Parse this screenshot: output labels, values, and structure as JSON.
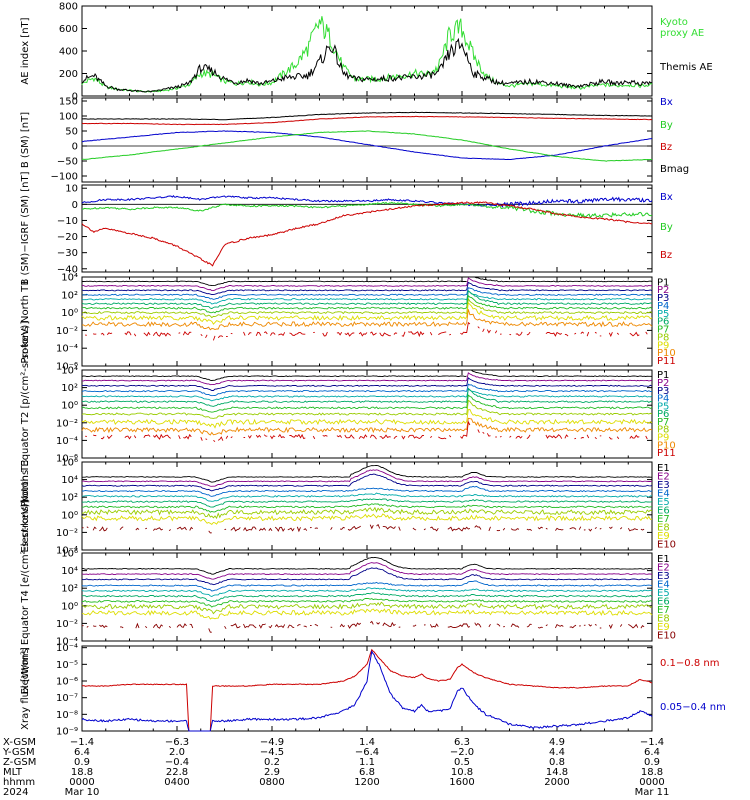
{
  "colors": {
    "black": "#000000",
    "green": "#22cc22",
    "blue": "#0000cc",
    "red": "#cc0000",
    "kyoto": "#33dd33",
    "P": [
      "#000000",
      "#880088",
      "#000088",
      "#0066cc",
      "#00aaaa",
      "#00aa66",
      "#22bb22",
      "#99cc00",
      "#dddd00",
      "#ee8800",
      "#cc0000",
      "#880000"
    ]
  },
  "chart_data": [
    {
      "type": "line",
      "title": "",
      "ylabel": "AE index [nT]",
      "yscale": "linear",
      "ylim": [
        0,
        800
      ],
      "yticks": [
        "0",
        "200",
        "400",
        "600",
        "800"
      ],
      "xlim": [
        0,
        24
      ],
      "series": [
        {
          "name": "Themis AE",
          "color": "#000000",
          "x": [
            0,
            0.5,
            1,
            1.5,
            2,
            2.5,
            3,
            3.5,
            4,
            4.5,
            5,
            5.5,
            6,
            6.5,
            7,
            7.5,
            8,
            8.5,
            9,
            9.5,
            10,
            10.5,
            11,
            11.5,
            12,
            12.5,
            13,
            13.5,
            14,
            14.5,
            15,
            15.5,
            16,
            16.5,
            17,
            17.5,
            18,
            18.5,
            19,
            19.5,
            20,
            20.5,
            21,
            21.5,
            22,
            22.5,
            23,
            23.5,
            24
          ],
          "y": [
            140,
            180,
            90,
            60,
            50,
            40,
            40,
            60,
            80,
            110,
            250,
            220,
            150,
            120,
            140,
            110,
            130,
            160,
            170,
            180,
            300,
            460,
            200,
            150,
            150,
            150,
            160,
            160,
            170,
            180,
            200,
            390,
            460,
            200,
            160,
            120,
            110,
            120,
            130,
            120,
            110,
            90,
            90,
            110,
            130,
            110,
            130,
            110,
            120
          ]
        },
        {
          "name": "Kyoto proxy AE",
          "color": "#33dd33",
          "x": [
            0,
            0.5,
            1,
            1.5,
            2,
            2.5,
            3,
            3.5,
            4,
            4.5,
            5,
            5.5,
            6,
            6.5,
            7,
            7.5,
            8,
            8.5,
            9,
            9.5,
            10,
            10.5,
            11,
            11.5,
            12,
            12.5,
            13,
            13.5,
            14,
            14.5,
            15,
            15.5,
            16,
            16.5,
            17,
            17.5,
            18,
            18.5,
            19,
            19.5,
            20,
            20.5,
            21,
            21.5,
            22,
            22.5,
            23,
            23.5,
            24
          ],
          "y": [
            110,
            160,
            80,
            60,
            50,
            40,
            40,
            50,
            70,
            100,
            200,
            190,
            130,
            110,
            130,
            100,
            120,
            200,
            280,
            420,
            650,
            500,
            250,
            150,
            150,
            150,
            170,
            180,
            200,
            190,
            250,
            560,
            600,
            350,
            180,
            110,
            90,
            100,
            110,
            100,
            90,
            80,
            70,
            90,
            100,
            90,
            100,
            90,
            100
          ]
        }
      ]
    },
    {
      "type": "line",
      "title": "",
      "ylabel": "B (SM) [nT]",
      "yscale": "linear",
      "ylim": [
        -120,
        160
      ],
      "yticks": [
        "−100",
        "−50",
        "0",
        "50",
        "100",
        "150"
      ],
      "xlim": [
        0,
        24
      ],
      "series": [
        {
          "name": "Bx",
          "color": "#0000cc",
          "x": [
            0,
            2,
            4,
            6,
            8,
            10,
            12,
            14,
            16,
            18,
            20,
            22,
            24
          ],
          "y": [
            15,
            30,
            45,
            50,
            45,
            30,
            5,
            -20,
            -40,
            -45,
            -30,
            0,
            25
          ]
        },
        {
          "name": "By",
          "color": "#22cc22",
          "x": [
            0,
            2,
            4,
            6,
            8,
            10,
            12,
            14,
            16,
            18,
            20,
            22,
            24
          ],
          "y": [
            -45,
            -30,
            -10,
            10,
            30,
            45,
            50,
            40,
            20,
            -10,
            -35,
            -50,
            -45
          ]
        },
        {
          "name": "Bz",
          "color": "#cc0000",
          "x": [
            0,
            2,
            4,
            6,
            8,
            10,
            12,
            14,
            16,
            18,
            20,
            22,
            24
          ],
          "y": [
            75,
            75,
            72,
            72,
            78,
            90,
            97,
            98,
            97,
            95,
            92,
            90,
            88
          ]
        },
        {
          "name": "Bmag",
          "color": "#000000",
          "x": [
            0,
            2,
            4,
            6,
            8,
            10,
            12,
            14,
            16,
            18,
            20,
            22,
            24
          ],
          "y": [
            90,
            90,
            90,
            88,
            95,
            105,
            110,
            112,
            110,
            108,
            105,
            102,
            100
          ]
        }
      ]
    },
    {
      "type": "line",
      "title": "",
      "ylabel": "B (SM)−IGRF (SM) [nT]",
      "yscale": "linear",
      "ylim": [
        -42,
        12
      ],
      "yticks": [
        "−40",
        "−30",
        "−20",
        "−10",
        "0",
        "10"
      ],
      "xlim": [
        0,
        24
      ],
      "series": [
        {
          "name": "Bx",
          "color": "#0000cc",
          "x": [
            0,
            1,
            2,
            3,
            4,
            5,
            6,
            7,
            8,
            9,
            10,
            11,
            12,
            13,
            14,
            15,
            16,
            17,
            18,
            19,
            20,
            21,
            22,
            23,
            24
          ],
          "y": [
            1,
            3,
            3,
            4,
            5,
            3,
            5,
            4,
            4,
            3,
            2,
            2,
            2,
            3,
            2,
            1,
            0,
            -1,
            0,
            1,
            2,
            2,
            3,
            3,
            2
          ]
        },
        {
          "name": "By",
          "color": "#22cc22",
          "x": [
            0,
            1,
            2,
            3,
            4,
            5,
            6,
            7,
            8,
            9,
            10,
            11,
            12,
            13,
            14,
            15,
            16,
            17,
            18,
            19,
            20,
            21,
            22,
            23,
            24
          ],
          "y": [
            -3,
            -2,
            -3,
            -2,
            -2,
            -4,
            0,
            -1,
            -1,
            -1,
            -2,
            -1,
            0,
            1,
            0,
            -1,
            0,
            -1,
            -2,
            -4,
            -6,
            -7,
            -7,
            -6,
            -6
          ]
        },
        {
          "name": "Bz",
          "color": "#cc0000",
          "x": [
            0,
            0.5,
            1,
            2,
            3,
            4,
            5,
            5.5,
            6,
            7,
            8,
            9,
            10,
            11,
            12,
            13,
            14,
            15,
            16,
            17,
            18,
            19,
            20,
            21,
            22,
            23,
            24
          ],
          "y": [
            -12,
            -17,
            -15,
            -18,
            -21,
            -26,
            -34,
            -38,
            -25,
            -21,
            -19,
            -15,
            -12,
            -7,
            -5,
            -3,
            -1,
            0,
            1,
            1,
            -1,
            -3,
            -6,
            -8,
            -9,
            -11,
            -12
          ]
        }
      ]
    },
    {
      "type": "line",
      "title": "",
      "ylabel": "Protons North T1",
      "yscale": "log",
      "ylim": [
        -6,
        4
      ],
      "yticks": [
        "10⁴",
        "10²",
        "10⁰",
        "10⁻²",
        "10⁻⁴",
        "10⁻⁶"
      ],
      "xlim": [
        0,
        24
      ],
      "channels": [
        "P1",
        "P2",
        "P3",
        "P4",
        "P5",
        "P6",
        "P7",
        "P8",
        "P9",
        "P10",
        "P11"
      ],
      "levels": [
        3.5,
        3.0,
        2.5,
        2.0,
        1.5,
        1.0,
        0.5,
        0.0,
        -0.6,
        -1.3,
        -2.4
      ],
      "event_hour": 16.3
    },
    {
      "type": "line",
      "title": "",
      "ylabel": "Protons Equator T2 [p/(cm²-s-sr-keV)]",
      "yscale": "log",
      "ylim": [
        -6,
        4
      ],
      "yticks": [
        "10⁴",
        "10²",
        "10⁰",
        "10⁻²",
        "10⁻⁴",
        "10⁻⁶"
      ],
      "xlim": [
        0,
        24
      ],
      "channels": [
        "P1",
        "P2",
        "P3",
        "P4",
        "P5",
        "P6",
        "P7",
        "P8",
        "P9",
        "P10",
        "P11"
      ],
      "levels": [
        3.3,
        2.8,
        2.2,
        1.6,
        1.0,
        0.4,
        -0.3,
        -1.0,
        -1.9,
        -2.8,
        -3.6
      ],
      "event_hour": 16.3
    },
    {
      "type": "line",
      "title": "",
      "ylabel": "Electrons North T3",
      "yscale": "log",
      "ylim": [
        -4,
        6
      ],
      "yticks": [
        "10⁶",
        "10⁴",
        "10²",
        "10⁰",
        "10⁻²",
        "10⁻⁴"
      ],
      "xlim": [
        0,
        24
      ],
      "channels": [
        "E1",
        "E2",
        "E3",
        "E4",
        "E5",
        "E6",
        "E7",
        "E8",
        "E9",
        "E10"
      ],
      "levels": [
        4.3,
        3.8,
        3.3,
        2.7,
        2.1,
        1.5,
        0.9,
        0.3,
        -0.4,
        -1.6
      ],
      "event_hour": 12.3
    },
    {
      "type": "line",
      "title": "",
      "ylabel": "Electrons Equator T4 [e/(cm²-s-sr-keV)]",
      "yscale": "log",
      "ylim": [
        -4,
        6
      ],
      "yticks": [
        "10⁶",
        "10⁴",
        "10²",
        "10⁰",
        "10⁻²",
        "10⁻⁴"
      ],
      "xlim": [
        0,
        24
      ],
      "channels": [
        "E1",
        "E2",
        "E3",
        "E4",
        "E5",
        "E6",
        "E7",
        "E8",
        "E9",
        "E10"
      ],
      "levels": [
        4.2,
        3.6,
        3.0,
        2.3,
        1.7,
        1.1,
        0.5,
        -0.1,
        -0.8,
        -2.3
      ],
      "event_hour": 12.3
    },
    {
      "type": "line",
      "title": "",
      "ylabel": "Xray flux [W/m²]",
      "yscale": "log",
      "ylim": [
        -9,
        -3.9
      ],
      "yticks": [
        "10⁻⁴",
        "10⁻⁵",
        "10⁻⁶",
        "10⁻⁷",
        "10⁻⁸",
        "10⁻⁹"
      ],
      "xlim": [
        0,
        24
      ],
      "series": [
        {
          "name": "0.1–0.8 nm",
          "color": "#cc0000",
          "x": [
            0,
            1,
            2,
            3,
            4,
            4.4,
            4.5,
            5.4,
            5.5,
            6,
            7,
            8,
            9,
            10,
            10.5,
            11,
            11.5,
            12,
            12.2,
            12.5,
            13,
            13.5,
            14,
            14.3,
            14.5,
            15,
            15.5,
            15.8,
            16,
            16.3,
            16.5,
            17,
            17.5,
            18,
            19,
            20,
            21,
            22,
            23,
            23.5,
            24
          ],
          "y": [
            -6.3,
            -6.3,
            -6.2,
            -6.2,
            -6.2,
            -6.2,
            -9.0,
            -9.0,
            -6.3,
            -6.3,
            -6.3,
            -6.2,
            -6.2,
            -6.2,
            -6.1,
            -6.0,
            -5.7,
            -5.0,
            -4.1,
            -4.6,
            -5.4,
            -5.7,
            -5.8,
            -5.6,
            -5.8,
            -6.0,
            -5.9,
            -5.2,
            -5.0,
            -5.3,
            -5.5,
            -5.8,
            -6.0,
            -6.2,
            -6.3,
            -6.4,
            -6.4,
            -6.3,
            -6.3,
            -5.9,
            -6.1
          ]
        },
        {
          "name": "0.05–0.4 nm",
          "color": "#0000cc",
          "x": [
            0,
            1,
            2,
            3,
            4,
            4.4,
            4.5,
            5.4,
            5.5,
            6,
            7,
            8,
            9,
            10,
            10.5,
            11,
            11.5,
            12,
            12.2,
            12.5,
            13,
            13.5,
            14,
            14.3,
            14.5,
            15,
            15.5,
            15.8,
            16,
            16.3,
            16.5,
            17,
            17.5,
            18,
            19,
            20,
            21,
            22,
            23,
            23.5,
            24
          ],
          "y": [
            -8.3,
            -8.4,
            -8.3,
            -8.4,
            -8.4,
            -8.4,
            -9.0,
            -9.0,
            -8.4,
            -8.4,
            -8.3,
            -8.3,
            -8.3,
            -8.2,
            -8.0,
            -7.8,
            -7.4,
            -6.0,
            -4.2,
            -5.0,
            -6.8,
            -7.6,
            -7.8,
            -7.4,
            -7.8,
            -7.8,
            -7.7,
            -6.6,
            -6.4,
            -7.0,
            -7.4,
            -8.0,
            -8.3,
            -8.6,
            -8.8,
            -8.7,
            -8.6,
            -8.4,
            -8.2,
            -7.8,
            -8.1
          ]
        }
      ]
    }
  ],
  "labels": {
    "ae": [
      "Kyoto",
      "proxy AE",
      "Themis AE"
    ],
    "b": [
      "Bx",
      "By",
      "Bz",
      "Bmag"
    ],
    "db": [
      "Bx",
      "By",
      "Bz"
    ],
    "xray": [
      "0.1−0.8 nm",
      "0.05−0.4 nm"
    ]
  },
  "footer": {
    "row_labels": [
      "X-GSM",
      "Y-GSM",
      "Z-GSM",
      "MLT",
      "hhmm",
      "2024"
    ],
    "columns": [
      {
        "values": [
          "−1.4",
          "6.4",
          "0.9",
          "18.8",
          "0000",
          "Mar 10"
        ]
      },
      {
        "values": [
          "−6.3",
          "2.0",
          "−0.4",
          "22.8",
          "0400",
          ""
        ]
      },
      {
        "values": [
          "−4.9",
          "−4.5",
          "0.2",
          "2.9",
          "0800",
          ""
        ]
      },
      {
        "values": [
          "1.4",
          "−6.4",
          "1.1",
          "6.8",
          "1200",
          ""
        ]
      },
      {
        "values": [
          "6.3",
          "−2.0",
          "0.5",
          "10.8",
          "1600",
          ""
        ]
      },
      {
        "values": [
          "4.9",
          "4.4",
          "0.8",
          "14.8",
          "2000",
          ""
        ]
      },
      {
        "values": [
          "−1.4",
          "6.4",
          "0.9",
          "18.8",
          "0000",
          "Mar 11"
        ]
      }
    ]
  }
}
